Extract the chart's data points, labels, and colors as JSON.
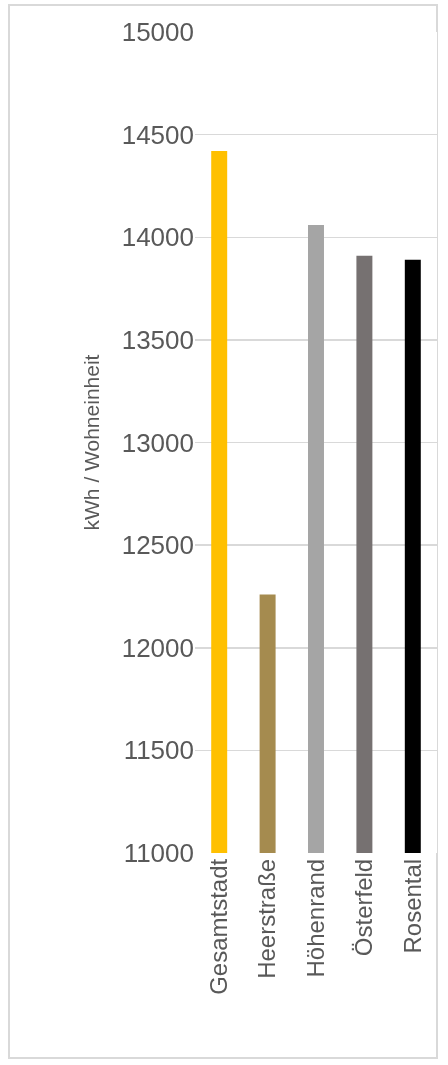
{
  "chart_data": {
    "type": "bar",
    "ylabel": "kWh / Wohneinheit",
    "categories": [
      "Gesamtstadt",
      "Heerstraße",
      "Höhenrand",
      "Österfeld",
      "Rosental"
    ],
    "values": [
      14420,
      12260,
      14060,
      13910,
      13890
    ],
    "colors": [
      "#ffc000",
      "#a58b4f",
      "#a5a5a5",
      "#767171",
      "#000000"
    ],
    "ylim": [
      11000,
      15000
    ],
    "yticks": [
      11000,
      11500,
      12000,
      12500,
      13000,
      13500,
      14000,
      14500,
      15000
    ],
    "grid": "y"
  }
}
